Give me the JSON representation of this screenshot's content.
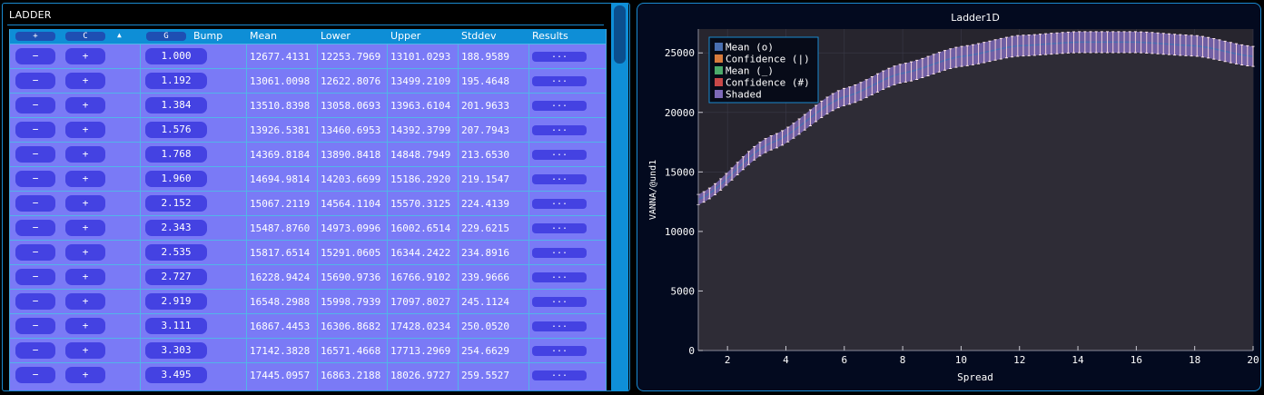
{
  "left_panel": {
    "title": "LADDER",
    "header": {
      "add_label": "+",
      "clear_label": "C",
      "sort_indicator": "▲",
      "group_label": "G",
      "columns": [
        "Bump",
        "Mean",
        "Lower",
        "Upper",
        "Stddev",
        "Results"
      ]
    },
    "rows": [
      {
        "minus": "−",
        "plus": "+",
        "bump": "1.000",
        "mean": "12677.4131",
        "lower": "12253.7969",
        "upper": "13101.0293",
        "stddev": "188.9589",
        "results": "..."
      },
      {
        "minus": "−",
        "plus": "+",
        "bump": "1.192",
        "mean": "13061.0098",
        "lower": "12622.8076",
        "upper": "13499.2109",
        "stddev": "195.4648",
        "results": "..."
      },
      {
        "minus": "−",
        "plus": "+",
        "bump": "1.384",
        "mean": "13510.8398",
        "lower": "13058.0693",
        "upper": "13963.6104",
        "stddev": "201.9633",
        "results": "..."
      },
      {
        "minus": "−",
        "plus": "+",
        "bump": "1.576",
        "mean": "13926.5381",
        "lower": "13460.6953",
        "upper": "14392.3799",
        "stddev": "207.7943",
        "results": "..."
      },
      {
        "minus": "−",
        "plus": "+",
        "bump": "1.768",
        "mean": "14369.8184",
        "lower": "13890.8418",
        "upper": "14848.7949",
        "stddev": "213.6530",
        "results": "..."
      },
      {
        "minus": "−",
        "plus": "+",
        "bump": "1.960",
        "mean": "14694.9814",
        "lower": "14203.6699",
        "upper": "15186.2920",
        "stddev": "219.1547",
        "results": "..."
      },
      {
        "minus": "−",
        "plus": "+",
        "bump": "2.152",
        "mean": "15067.2119",
        "lower": "14564.1104",
        "upper": "15570.3125",
        "stddev": "224.4139",
        "results": "..."
      },
      {
        "minus": "−",
        "plus": "+",
        "bump": "2.343",
        "mean": "15487.8760",
        "lower": "14973.0996",
        "upper": "16002.6514",
        "stddev": "229.6215",
        "results": "..."
      },
      {
        "minus": "−",
        "plus": "+",
        "bump": "2.535",
        "mean": "15817.6514",
        "lower": "15291.0605",
        "upper": "16344.2422",
        "stddev": "234.8916",
        "results": "..."
      },
      {
        "minus": "−",
        "plus": "+",
        "bump": "2.727",
        "mean": "16228.9424",
        "lower": "15690.9736",
        "upper": "16766.9102",
        "stddev": "239.9666",
        "results": "..."
      },
      {
        "minus": "−",
        "plus": "+",
        "bump": "2.919",
        "mean": "16548.2988",
        "lower": "15998.7939",
        "upper": "17097.8027",
        "stddev": "245.1124",
        "results": "..."
      },
      {
        "minus": "−",
        "plus": "+",
        "bump": "3.111",
        "mean": "16867.4453",
        "lower": "16306.8682",
        "upper": "17428.0234",
        "stddev": "250.0520",
        "results": "..."
      },
      {
        "minus": "−",
        "plus": "+",
        "bump": "3.303",
        "mean": "17142.3828",
        "lower": "16571.4668",
        "upper": "17713.2969",
        "stddev": "254.6629",
        "results": "..."
      },
      {
        "minus": "−",
        "plus": "+",
        "bump": "3.495",
        "mean": "17445.0957",
        "lower": "16863.2188",
        "upper": "18026.9727",
        "stddev": "259.5527",
        "results": "..."
      }
    ]
  },
  "colors": {
    "table_bg": "#7a7af6",
    "header_bg": "#0e8ed6",
    "button_bg": "#4442e2",
    "plot_bg": "#030a1f",
    "mean_o": "#4a6fb0",
    "confidence_bar": "#d87a3c",
    "mean_line": "#4caa6a",
    "confidence_hash": "#c84848",
    "shaded": "#7e6ab8"
  },
  "chart_data": {
    "type": "line",
    "title": "Ladder1D",
    "xlabel": "Spread",
    "ylabel": "VANNA/@und1",
    "xlim": [
      1,
      20
    ],
    "ylim": [
      0,
      27000
    ],
    "xticks": [
      "2",
      "4",
      "6",
      "8",
      "10",
      "12",
      "14",
      "16",
      "18",
      "20"
    ],
    "yticks": [
      "0",
      "5000",
      "10000",
      "15000",
      "20000",
      "25000"
    ],
    "grid": true,
    "legend_position": "top-left",
    "legend": [
      "Mean (o)",
      "Confidence (|)",
      "Mean (_)",
      "Confidence (#)",
      "Shaded"
    ],
    "x_start": 1,
    "x_end": 20,
    "n_points": 100,
    "anchors": [
      {
        "x": 1,
        "y": 12677
      },
      {
        "x": 3.5,
        "y": 17445
      },
      {
        "x": 6,
        "y": 21300
      },
      {
        "x": 8,
        "y": 23300
      },
      {
        "x": 10,
        "y": 24700
      },
      {
        "x": 12,
        "y": 25600
      },
      {
        "x": 14,
        "y": 25900
      },
      {
        "x": 16,
        "y": 25900
      },
      {
        "x": 18,
        "y": 25600
      },
      {
        "x": 20,
        "y": 24700
      }
    ],
    "confidence_halfwidth_fraction": 0.034
  }
}
